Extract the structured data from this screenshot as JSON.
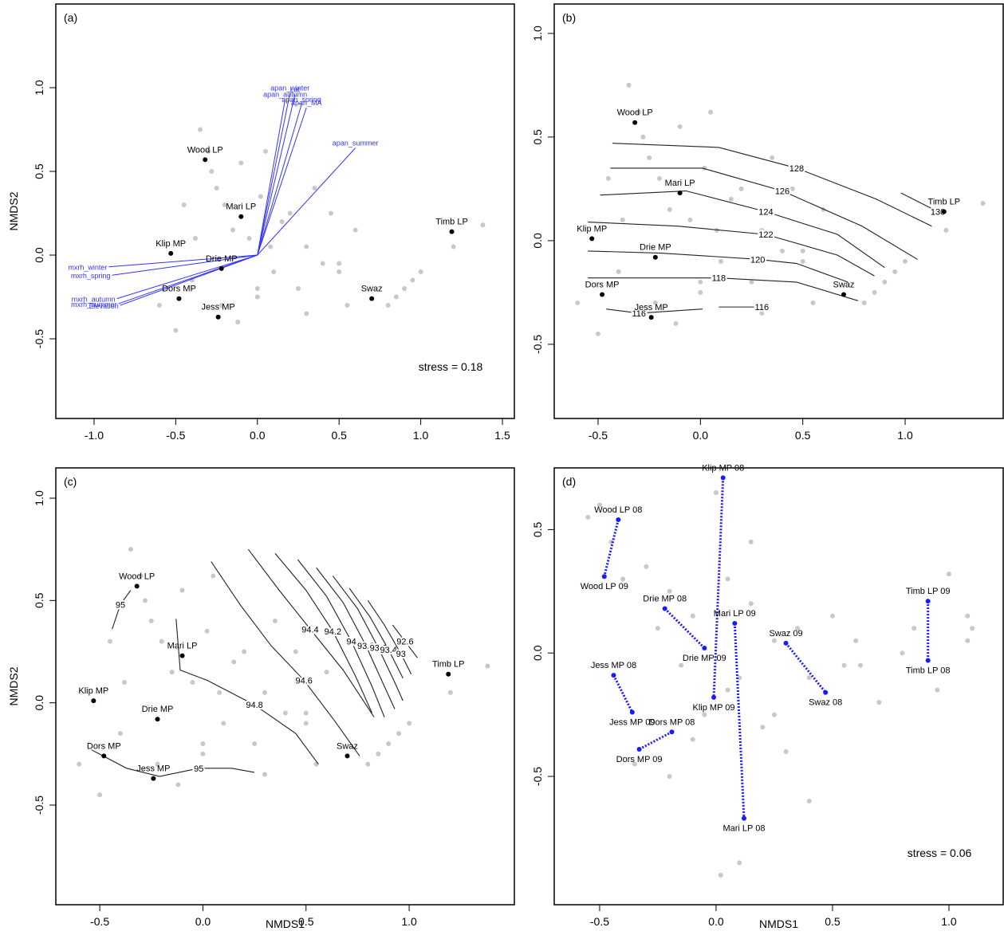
{
  "chart_data": [
    {
      "type": "scatter",
      "panel_label": "(a)",
      "ylabel": "NMDS2",
      "annotation": "stress = 0.18",
      "xlim": [
        -1.234,
        1.573
      ],
      "ylim": [
        -0.976,
        1.5
      ],
      "xticks": [
        {
          "value": -1,
          "label": "-1.0"
        },
        -0.5,
        {
          "value": 0,
          "label": "0.0"
        },
        0.5,
        {
          "value": 1,
          "label": "1.0"
        },
        1.5
      ],
      "yticks": [
        -0.5,
        {
          "value": 0,
          "label": "0.0"
        },
        0.5,
        {
          "value": 1,
          "label": "1.0"
        }
      ],
      "background": {
        "color": "#c8c8c8",
        "x": [
          -0.35,
          -0.3,
          -0.28,
          -0.25,
          -0.2,
          -0.15,
          -0.1,
          -0.05,
          0.0,
          0.05,
          0.1,
          0.15,
          0.2,
          0.25,
          0.3,
          0.35,
          0.4,
          0.45,
          0.5,
          0.55,
          0.6,
          -0.45,
          -0.4,
          -0.38,
          -0.22,
          -0.12,
          0.0,
          0.08,
          0.3,
          0.5,
          0.8,
          0.85,
          0.9,
          0.95,
          1.0,
          1.2,
          1.38,
          -0.6,
          -0.5,
          0.02
        ],
        "y": [
          0.75,
          0.62,
          0.5,
          0.4,
          0.3,
          0.15,
          0.55,
          0.1,
          -0.2,
          0.62,
          -0.1,
          0.2,
          0.25,
          -0.2,
          0.05,
          0.4,
          -0.05,
          0.25,
          -0.1,
          -0.3,
          0.15,
          0.3,
          -0.15,
          0.1,
          -0.3,
          -0.4,
          -0.25,
          0.05,
          -0.35,
          -0.05,
          -0.3,
          -0.25,
          -0.2,
          -0.15,
          -0.1,
          0.05,
          0.18,
          -0.3,
          -0.45,
          0.35
        ]
      },
      "sites": {
        "color": "#000000",
        "names": [
          "Wood LP",
          "Mari LP",
          "Klip MP",
          "Drie MP",
          "Dors MP",
          "Jess MP",
          "Swaz",
          "Timb LP"
        ],
        "x": [
          -0.32,
          -0.1,
          -0.53,
          -0.22,
          -0.48,
          -0.24,
          0.7,
          1.19
        ],
        "y": [
          0.57,
          0.23,
          0.01,
          -0.08,
          -0.26,
          -0.37,
          -0.26,
          0.14
        ]
      },
      "vectors": {
        "color": "#3333ff",
        "names": [
          "apan_winter",
          "apan_autumn",
          "Lat",
          "apan_spring",
          "apan_MA",
          "apan_summer",
          "mxrh_winter",
          "mxrh_spring",
          "mxrh_autumn",
          "mxrh_summer",
          "Elevation"
        ],
        "x": [
          0.2,
          0.17,
          0.23,
          0.27,
          0.3,
          0.6,
          -0.91,
          -0.89,
          -0.86,
          -0.85,
          -0.84
        ],
        "y": [
          0.97,
          0.93,
          0.96,
          0.9,
          0.88,
          0.64,
          -0.07,
          -0.12,
          -0.26,
          -0.29,
          -0.3
        ]
      }
    },
    {
      "type": "scatter",
      "panel_label": "(b)",
      "xlim": [
        -0.714,
        1.479
      ],
      "ylim": [
        -0.858,
        1.142
      ],
      "xticks": [
        -0.5,
        {
          "value": 0,
          "label": "0.0"
        },
        0.5,
        {
          "value": 1,
          "label": "1.0"
        }
      ],
      "yticks": [
        -0.5,
        {
          "value": 0,
          "label": "0.0"
        },
        0.5,
        {
          "value": 1,
          "label": "1.0"
        }
      ],
      "background": {
        "color": "#c8c8c8",
        "x": [
          -0.35,
          -0.3,
          -0.28,
          -0.25,
          -0.2,
          -0.15,
          -0.1,
          -0.05,
          0.0,
          0.05,
          0.1,
          0.15,
          0.2,
          0.25,
          0.3,
          0.35,
          0.4,
          0.45,
          0.5,
          0.55,
          0.6,
          -0.45,
          -0.4,
          -0.38,
          -0.22,
          -0.12,
          0.0,
          0.08,
          0.3,
          0.5,
          0.8,
          0.85,
          0.9,
          0.95,
          1.0,
          1.2,
          1.38,
          -0.6,
          -0.5,
          0.02
        ],
        "y": [
          0.75,
          0.62,
          0.5,
          0.4,
          0.3,
          0.15,
          0.55,
          0.1,
          -0.2,
          0.62,
          -0.1,
          0.2,
          0.25,
          -0.2,
          0.05,
          0.4,
          -0.05,
          0.25,
          -0.1,
          -0.3,
          0.15,
          0.3,
          -0.15,
          0.1,
          -0.3,
          -0.4,
          -0.25,
          0.05,
          -0.35,
          -0.05,
          -0.3,
          -0.25,
          -0.2,
          -0.15,
          -0.1,
          0.05,
          0.18,
          -0.3,
          -0.45,
          0.35
        ]
      },
      "sites": {
        "color": "#000000",
        "names": [
          "Wood LP",
          "Mari LP",
          "Klip MP",
          "Drie MP",
          "Dors MP",
          "Jess MP",
          "Swaz",
          "Timb LP"
        ],
        "x": [
          -0.32,
          -0.1,
          -0.53,
          -0.22,
          -0.48,
          -0.24,
          0.7,
          1.19
        ],
        "y": [
          0.57,
          0.23,
          0.01,
          -0.08,
          -0.26,
          -0.37,
          -0.26,
          0.14
        ]
      },
      "contours": [
        {
          "level": 128,
          "x": [
            -0.43,
            0.09,
            0.47,
            0.86,
            1.13
          ],
          "y": [
            0.47,
            0.45,
            0.35,
            0.2,
            0.07
          ]
        },
        {
          "level": 126,
          "x": [
            -0.44,
            0.01,
            0.4,
            0.79,
            1.06
          ],
          "y": [
            0.35,
            0.35,
            0.24,
            0.07,
            -0.09
          ]
        },
        {
          "level": 124,
          "x": [
            -0.49,
            -0.07,
            0.32,
            0.67,
            0.9
          ],
          "y": [
            0.22,
            0.24,
            0.14,
            0.03,
            -0.13
          ]
        },
        {
          "level": 122,
          "x": [
            -0.55,
            -0.11,
            0.32,
            0.67,
            0.85
          ],
          "y": [
            0.09,
            0.07,
            0.03,
            -0.07,
            -0.17
          ]
        },
        {
          "level": 120,
          "x": [
            -0.55,
            -0.19,
            0.28,
            0.47,
            0.72
          ],
          "y": [
            -0.05,
            -0.06,
            -0.09,
            -0.11,
            -0.2
          ]
        },
        {
          "level": 118,
          "x": [
            -0.55,
            -0.23,
            0.09,
            0.47,
            0.77
          ],
          "y": [
            -0.18,
            -0.18,
            -0.18,
            -0.2,
            -0.29
          ]
        },
        {
          "level": 116,
          "x": [
            -0.46,
            -0.3,
            0.01
          ],
          "y": [
            -0.33,
            -0.35,
            -0.33
          ]
        },
        {
          "level": 116,
          "x": [
            0.09,
            0.3
          ],
          "y": [
            -0.32,
            -0.32
          ]
        },
        {
          "level": 130,
          "x": [
            0.98,
            1.16
          ],
          "y": [
            0.23,
            0.14
          ]
        }
      ]
    },
    {
      "type": "scatter",
      "panel_label": "(c)",
      "ylabel": "NMDS2",
      "xlabel": "NMDS1",
      "xlim": [
        -0.713,
        1.51
      ],
      "ylim": [
        -0.987,
        1.148
      ],
      "xticks": [
        -0.5,
        {
          "value": 0,
          "label": "0.0"
        },
        0.5,
        {
          "value": 1,
          "label": "1.0"
        }
      ],
      "yticks": [
        -0.5,
        {
          "value": 0,
          "label": "0.0"
        },
        0.5,
        {
          "value": 1,
          "label": "1.0"
        }
      ],
      "background": {
        "color": "#c8c8c8",
        "x": [
          -0.35,
          -0.3,
          -0.28,
          -0.25,
          -0.2,
          -0.15,
          -0.1,
          -0.05,
          0.0,
          0.05,
          0.1,
          0.15,
          0.2,
          0.25,
          0.3,
          0.35,
          0.4,
          0.45,
          0.5,
          0.55,
          0.6,
          -0.45,
          -0.4,
          -0.38,
          -0.22,
          -0.12,
          0.0,
          0.08,
          0.3,
          0.5,
          0.8,
          0.85,
          0.9,
          0.95,
          1.0,
          1.2,
          1.38,
          -0.6,
          -0.5,
          0.02
        ],
        "y": [
          0.75,
          0.62,
          0.5,
          0.4,
          0.3,
          0.15,
          0.55,
          0.1,
          -0.2,
          0.62,
          -0.1,
          0.2,
          0.25,
          -0.2,
          0.05,
          0.4,
          -0.05,
          0.25,
          -0.1,
          -0.3,
          0.15,
          0.3,
          -0.15,
          0.1,
          -0.3,
          -0.4,
          -0.25,
          0.05,
          -0.35,
          -0.05,
          -0.3,
          -0.25,
          -0.2,
          -0.15,
          -0.1,
          0.05,
          0.18,
          -0.3,
          -0.45,
          0.35
        ]
      },
      "sites": {
        "color": "#000000",
        "names": [
          "Wood LP",
          "Mari LP",
          "Klip MP",
          "Drie MP",
          "Dors MP",
          "Jess MP",
          "Swaz",
          "Timb LP"
        ],
        "x": [
          -0.32,
          -0.1,
          -0.53,
          -0.22,
          -0.48,
          -0.24,
          0.7,
          1.19
        ],
        "y": [
          0.57,
          0.23,
          0.01,
          -0.08,
          -0.26,
          -0.37,
          -0.26,
          0.14
        ]
      },
      "contours": [
        {
          "level": 95,
          "x": [
            -0.44,
            -0.4,
            -0.35
          ],
          "y": [
            0.36,
            0.48,
            0.55
          ]
        },
        {
          "level": 95,
          "x": [
            -0.54,
            -0.37,
            -0.21,
            -0.02,
            0.14,
            0.25
          ],
          "y": [
            -0.23,
            -0.32,
            -0.36,
            -0.32,
            -0.32,
            -0.34
          ]
        },
        {
          "level": 94.8,
          "x": [
            -0.13,
            -0.11,
            0.02,
            0.25,
            0.45,
            0.56
          ],
          "y": [
            0.41,
            0.16,
            0.11,
            -0.01,
            -0.15,
            -0.3
          ]
        },
        {
          "level": 94.6,
          "x": [
            0.04,
            0.18,
            0.33,
            0.49,
            0.64,
            0.76
          ],
          "y": [
            0.69,
            0.48,
            0.28,
            0.11,
            -0.09,
            -0.26
          ]
        },
        {
          "level": 94.4,
          "x": [
            0.22,
            0.37,
            0.52,
            0.68,
            0.83
          ],
          "y": [
            0.75,
            0.55,
            0.36,
            0.16,
            -0.07
          ]
        },
        {
          "level": 94.2,
          "x": [
            0.35,
            0.5,
            0.63,
            0.74,
            0.82
          ],
          "y": [
            0.73,
            0.55,
            0.35,
            0.13,
            -0.05
          ]
        },
        {
          "level": 94,
          "x": [
            0.46,
            0.6,
            0.72,
            0.82,
            0.88
          ],
          "y": [
            0.7,
            0.52,
            0.3,
            0.08,
            -0.07
          ]
        },
        {
          "level": 93.8,
          "x": [
            0.55,
            0.68,
            0.79,
            0.88,
            0.93
          ],
          "y": [
            0.66,
            0.49,
            0.28,
            0.08,
            -0.03
          ]
        },
        {
          "level": 93.6,
          "x": [
            0.63,
            0.75,
            0.85,
            0.93,
            0.97
          ],
          "y": [
            0.62,
            0.46,
            0.27,
            0.1,
            0.01
          ]
        },
        {
          "level": 93.4,
          "x": [
            0.71,
            0.81,
            0.9,
            0.97
          ],
          "y": [
            0.56,
            0.42,
            0.26,
            0.12
          ]
        },
        {
          "level": 93,
          "x": [
            0.8,
            0.88,
            0.96,
            1.01
          ],
          "y": [
            0.5,
            0.38,
            0.24,
            0.14
          ]
        },
        {
          "level": 92.6,
          "x": [
            0.92,
            0.98,
            1.04
          ],
          "y": [
            0.38,
            0.3,
            0.22
          ]
        }
      ]
    },
    {
      "type": "scatter",
      "panel_label": "(d)",
      "xlabel": "NMDS1",
      "annotation": "stress = 0.06",
      "xlim": [
        -0.695,
        1.233
      ],
      "ylim": [
        -1.02,
        0.75
      ],
      "xticks": [
        -0.5,
        {
          "value": 0,
          "label": "0.0"
        },
        0.5,
        {
          "value": 1,
          "label": "1.0"
        }
      ],
      "yticks": [
        -0.5,
        {
          "value": 0,
          "label": "0.0"
        },
        0.5
      ],
      "background": {
        "color": "#c8c8c8",
        "x": [
          -0.55,
          -0.5,
          -0.45,
          -0.4,
          -0.3,
          -0.25,
          -0.2,
          -0.15,
          -0.1,
          -0.05,
          0.0,
          0.05,
          0.1,
          0.15,
          0.2,
          0.25,
          0.3,
          0.35,
          0.4,
          0.5,
          0.55,
          0.6,
          0.7,
          0.8,
          0.85,
          0.95,
          1.0,
          1.08,
          1.08,
          1.1,
          -0.35,
          -0.2,
          -0.1,
          0.05,
          0.15,
          0.25,
          0.4,
          0.62,
          0.02,
          0.1
        ],
        "y": [
          0.55,
          0.6,
          0.45,
          0.3,
          0.35,
          0.1,
          0.25,
          -0.05,
          0.15,
          -0.25,
          0.65,
          0.3,
          -0.1,
          0.2,
          -0.3,
          0.05,
          -0.4,
          0.1,
          -0.6,
          0.15,
          -0.05,
          0.05,
          -0.2,
          0.0,
          0.1,
          -0.15,
          0.32,
          0.15,
          0.05,
          0.1,
          -0.45,
          -0.5,
          -0.35,
          -0.15,
          0.45,
          -0.25,
          -0.1,
          -0.05,
          -0.9,
          -0.85
        ]
      },
      "sites": {
        "color": "#1a1aff",
        "names": [
          "Wood LP 08",
          "Wood LP 09",
          "Klip MP 08",
          "Klip MP 09",
          "Drie MP 08",
          "Drie MP 09",
          "Mari LP 09",
          "Mari LP 08",
          "Swaz 09",
          "Swaz 08",
          "Timb LP 09",
          "Timb LP 08",
          "Jess MP 08",
          "Jess MP 09",
          "Dors MP 08",
          "Dors MP 09"
        ],
        "x": [
          -0.42,
          -0.48,
          0.03,
          -0.01,
          -0.22,
          -0.05,
          0.08,
          0.12,
          0.3,
          0.47,
          0.91,
          0.91,
          -0.44,
          -0.36,
          -0.19,
          -0.33
        ],
        "y": [
          0.54,
          0.31,
          0.71,
          -0.18,
          0.18,
          0.02,
          0.12,
          -0.67,
          0.04,
          -0.16,
          0.21,
          -0.03,
          -0.09,
          -0.24,
          -0.32,
          -0.39
        ]
      }
    }
  ]
}
